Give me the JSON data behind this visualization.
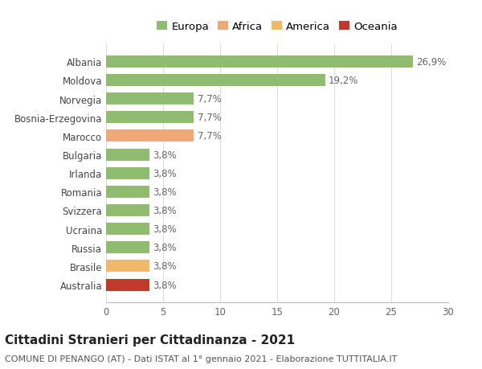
{
  "title": "Cittadini Stranieri per Cittadinanza - 2021",
  "subtitle": "COMUNE DI PENANGO (AT) - Dati ISTAT al 1° gennaio 2021 - Elaborazione TUTTITALIA.IT",
  "categories": [
    "Australia",
    "Brasile",
    "Russia",
    "Ucraina",
    "Svizzera",
    "Romania",
    "Irlanda",
    "Bulgaria",
    "Marocco",
    "Bosnia-Erzegovina",
    "Norvegia",
    "Moldova",
    "Albania"
  ],
  "values": [
    3.8,
    3.8,
    3.8,
    3.8,
    3.8,
    3.8,
    3.8,
    3.8,
    7.7,
    7.7,
    7.7,
    19.2,
    26.9
  ],
  "colors": [
    "#c0392b",
    "#f0b96a",
    "#8fbc6e",
    "#8fbc6e",
    "#8fbc6e",
    "#8fbc6e",
    "#8fbc6e",
    "#8fbc6e",
    "#f0a878",
    "#8fbc6e",
    "#8fbc6e",
    "#8fbc6e",
    "#8fbc6e"
  ],
  "labels": [
    "3,8%",
    "3,8%",
    "3,8%",
    "3,8%",
    "3,8%",
    "3,8%",
    "3,8%",
    "3,8%",
    "7,7%",
    "7,7%",
    "7,7%",
    "19,2%",
    "26,9%"
  ],
  "xlim": [
    0,
    30
  ],
  "xticks": [
    0,
    5,
    10,
    15,
    20,
    25,
    30
  ],
  "legend": [
    {
      "label": "Europa",
      "color": "#8fbc6e"
    },
    {
      "label": "Africa",
      "color": "#f0a878"
    },
    {
      "label": "America",
      "color": "#f0b96a"
    },
    {
      "label": "Oceania",
      "color": "#c0392b"
    }
  ],
  "background_color": "#ffffff",
  "grid_color": "#dddddd",
  "bar_height": 0.65,
  "label_fontsize": 8.5,
  "title_fontsize": 11,
  "subtitle_fontsize": 8,
  "tick_fontsize": 8.5,
  "legend_fontsize": 9.5
}
